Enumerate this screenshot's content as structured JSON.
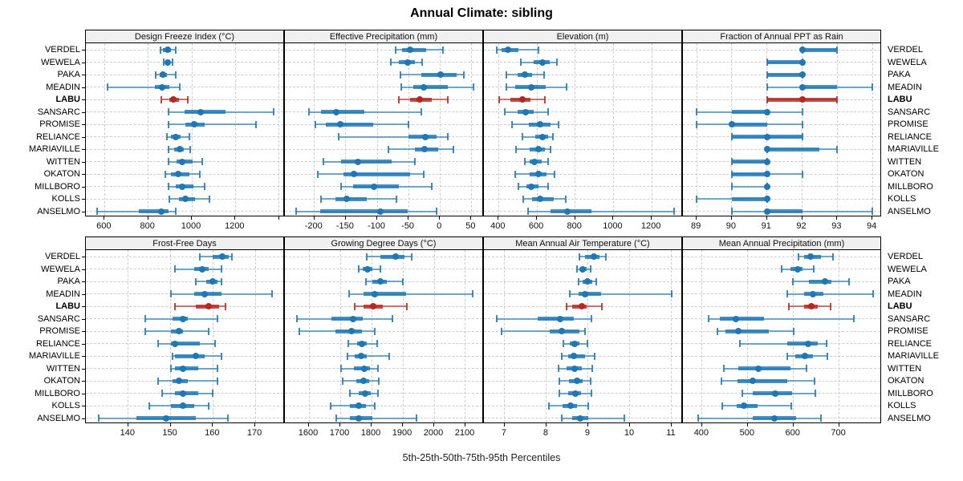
{
  "title": "Annual Climate: sibling",
  "footer": "5th-25th-50th-75th-95th Percentiles",
  "percentiles": [
    "5th",
    "25th",
    "50th",
    "75th",
    "95th"
  ],
  "stations": [
    "VERDEL",
    "WEWELA",
    "PAKA",
    "MEADIN",
    "LABU",
    "SANSARC",
    "PROMISE",
    "RELIANCE",
    "MARIAVILLE",
    "WITTEN",
    "OKATON",
    "MILLBORO",
    "KOLLS",
    "ANSELMO"
  ],
  "highlight_station": "LABU",
  "colors": {
    "series": "#1f77b4",
    "highlight": "#b42821",
    "panel_header_bg": "#f0f0f0",
    "border": "#000000",
    "grid": "#cdcdcd"
  },
  "chart_data": [
    {
      "type": "interval",
      "title": "Design Freeze Index (°C)",
      "row": 0,
      "col": 0,
      "xlim": [
        514,
        1427
      ],
      "ticks": [
        600,
        800,
        1000,
        1200
      ],
      "minor_ticks": [
        1400
      ],
      "series": {
        "VERDEL": [
          855,
          868,
          888,
          905,
          925
        ],
        "WEWELA": [
          870,
          880,
          890,
          900,
          912
        ],
        "PAKA": [
          835,
          851,
          868,
          886,
          925
        ],
        "MEADIN": [
          615,
          831,
          865,
          898,
          945
        ],
        "LABU": [
          861,
          897,
          915,
          940,
          982
        ],
        "SANSARC": [
          893,
          966,
          1039,
          1154,
          1377
        ],
        "PROMISE": [
          895,
          970,
          1011,
          1058,
          1294
        ],
        "RELIANCE": [
          886,
          906,
          927,
          948,
          990
        ],
        "MARIAVILLE": [
          895,
          919,
          944,
          962,
          993
        ],
        "WITTEN": [
          892,
          929,
          957,
          1002,
          1046
        ],
        "OKATON": [
          880,
          905,
          939,
          990,
          1036
        ],
        "MILLBORO": [
          892,
          927,
          954,
          1006,
          1058
        ],
        "KOLLS": [
          896,
          941,
          972,
          1015,
          1080
        ],
        "ANSELMO": [
          567,
          757,
          861,
          892,
          927
        ]
      }
    },
    {
      "type": "interval",
      "title": "Effective Precipitation (mm)",
      "row": 0,
      "col": 1,
      "xlim": [
        -247,
        70
      ],
      "ticks": [
        -200,
        -150,
        -100,
        -50,
        0,
        50
      ],
      "minor_ticks": [],
      "series": {
        "VERDEL": [
          -70,
          -60,
          -48,
          -22,
          5
        ],
        "WEWELA": [
          -78,
          -65,
          -52,
          -40,
          -28
        ],
        "PAKA": [
          -63,
          -30,
          1,
          26,
          38
        ],
        "MEADIN": [
          -62,
          -42,
          -26,
          12,
          53
        ],
        "LABU": [
          -66,
          -48,
          -32,
          -13,
          12
        ],
        "SANSARC": [
          -209,
          -189,
          -165,
          -120,
          -30
        ],
        "PROMISE": [
          -198,
          -182,
          -159,
          -106,
          -50
        ],
        "RELIANCE": [
          -161,
          -50,
          -23,
          -6,
          12
        ],
        "MARIAVILLE": [
          -82,
          -40,
          -25,
          -3,
          22
        ],
        "WITTEN": [
          -186,
          -157,
          -131,
          -77,
          -40
        ],
        "OKATON": [
          -194,
          -154,
          -137,
          -47,
          -26
        ],
        "MILLBORO": [
          -157,
          -138,
          -105,
          -66,
          -13
        ],
        "KOLLS": [
          -189,
          -167,
          -149,
          -116,
          -69
        ],
        "ANSELMO": [
          -229,
          -191,
          -95,
          -52,
          -6
        ]
      }
    },
    {
      "type": "interval",
      "title": "Elevation (m)",
      "row": 0,
      "col": 2,
      "xlim": [
        323,
        1363
      ],
      "ticks": [
        400,
        600,
        800,
        1000,
        1200
      ],
      "minor_ticks": [],
      "series": {
        "VERDEL": [
          390,
          414,
          449,
          505,
          610
        ],
        "WEWELA": [
          516,
          582,
          628,
          666,
          704
        ],
        "PAKA": [
          442,
          498,
          537,
          575,
          638
        ],
        "MEADIN": [
          439,
          488,
          572,
          645,
          753
        ],
        "LABU": [
          403,
          463,
          526,
          568,
          641
        ],
        "SANSARC": [
          432,
          498,
          540,
          582,
          659
        ],
        "PROMISE": [
          470,
          558,
          617,
          670,
          713
        ],
        "RELIANCE": [
          526,
          592,
          631,
          659,
          685
        ],
        "MARIAVILLE": [
          491,
          564,
          607,
          642,
          673
        ],
        "WITTEN": [
          536,
          561,
          589,
          624,
          657
        ],
        "OKATON": [
          487,
          564,
          610,
          652,
          690
        ],
        "MILLBORO": [
          505,
          544,
          572,
          610,
          659
        ],
        "KOLLS": [
          530,
          575,
          617,
          687,
          750
        ],
        "ANSELMO": [
          554,
          673,
          760,
          884,
          1318
        ]
      }
    },
    {
      "type": "interval",
      "title": "Fraction of Annual PPT as Rain",
      "row": 0,
      "col": 3,
      "xlim": [
        88.61,
        94.27
      ],
      "ticks": [
        89,
        90,
        91,
        92,
        93,
        94
      ],
      "minor_ticks": [],
      "series": {
        "VERDEL": [
          92,
          92,
          92,
          93,
          93
        ],
        "WEWELA": [
          91,
          91,
          92,
          92,
          92
        ],
        "PAKA": [
          91,
          91,
          92,
          92,
          92
        ],
        "MEADIN": [
          91,
          92,
          92,
          93,
          94
        ],
        "LABU": [
          91,
          91,
          92,
          93,
          93
        ],
        "SANSARC": [
          89,
          90,
          91,
          91,
          92
        ],
        "PROMISE": [
          89,
          90,
          90,
          91,
          92
        ],
        "RELIANCE": [
          90,
          90,
          91,
          92,
          92
        ],
        "MARIAVILLE": [
          91,
          91,
          91,
          92.5,
          93
        ],
        "WITTEN": [
          90,
          90,
          91,
          91,
          91
        ],
        "OKATON": [
          90,
          90,
          91,
          91,
          92
        ],
        "MILLBORO": [
          90,
          91,
          91,
          91,
          91
        ],
        "KOLLS": [
          89,
          90,
          91,
          91,
          91
        ],
        "ANSELMO": [
          90,
          91,
          91,
          92,
          94
        ]
      }
    },
    {
      "type": "interval",
      "title": "Frost-Free Days",
      "row": 1,
      "col": 0,
      "xlim": [
        130,
        177
      ],
      "ticks": [
        140,
        150,
        160,
        170
      ],
      "minor_ticks": [],
      "series": {
        "VERDEL": [
          157,
          160,
          162.3,
          163.7,
          164.5
        ],
        "WEWELA": [
          151,
          155.5,
          157.5,
          159,
          162
        ],
        "PAKA": [
          156,
          158.5,
          160,
          161,
          162
        ],
        "MEADIN": [
          150,
          155.5,
          158,
          162,
          174
        ],
        "LABU": [
          151,
          156,
          159,
          161.5,
          163
        ],
        "SANSARC": [
          144,
          150.5,
          153,
          154,
          161
        ],
        "PROMISE": [
          144,
          150,
          152,
          153,
          159
        ],
        "RELIANCE": [
          147,
          150,
          151,
          157,
          160.5
        ],
        "MARIAVILLE": [
          150.4,
          151,
          156,
          158,
          162
        ],
        "WITTEN": [
          150,
          151,
          153,
          156.5,
          161
        ],
        "OKATON": [
          147,
          150.4,
          152,
          154,
          161
        ],
        "MILLBORO": [
          148,
          151,
          153,
          156.5,
          160
        ],
        "KOLLS": [
          145,
          150,
          153,
          155.5,
          159
        ],
        "ANSELMO": [
          133,
          142,
          149,
          156,
          163.5
        ]
      }
    },
    {
      "type": "interval",
      "title": "Growing Degree Days (°C)",
      "row": 1,
      "col": 1,
      "xlim": [
        1523,
        2159
      ],
      "ticks": [
        1600,
        1700,
        1800,
        1900,
        2000,
        2100
      ],
      "minor_ticks": [],
      "series": {
        "VERDEL": [
          1785,
          1828,
          1878,
          1905,
          1929
        ],
        "WEWELA": [
          1760,
          1773,
          1788,
          1803,
          1828
        ],
        "PAKA": [
          1781,
          1803,
          1827,
          1848,
          1900
        ],
        "MEADIN": [
          1728,
          1774,
          1809,
          1910,
          2124
        ],
        "LABU": [
          1747,
          1774,
          1804,
          1837,
          1912
        ],
        "SANSARC": [
          1562,
          1672,
          1742,
          1772,
          1866
        ],
        "PROMISE": [
          1570,
          1685,
          1737,
          1768,
          1809
        ],
        "RELIANCE": [
          1726,
          1753,
          1768,
          1785,
          1818
        ],
        "MARIAVILLE": [
          1724,
          1747,
          1766,
          1785,
          1856
        ],
        "WITTEN": [
          1702,
          1744,
          1777,
          1796,
          1821
        ],
        "OKATON": [
          1707,
          1751,
          1775,
          1792,
          1824
        ],
        "MILLBORO": [
          1732,
          1758,
          1779,
          1798,
          1821
        ],
        "KOLLS": [
          1668,
          1730,
          1758,
          1781,
          1809
        ],
        "ANSELMO": [
          1687,
          1732,
          1760,
          1803,
          1944
        ]
      }
    },
    {
      "type": "interval",
      "title": "Mean Annual Air Temperature (°C)",
      "row": 1,
      "col": 2,
      "xlim": [
        6.5,
        11.27
      ],
      "ticks": [
        7,
        8,
        9,
        10,
        11
      ],
      "minor_ticks": [],
      "series": {
        "VERDEL": [
          8.79,
          8.92,
          9.14,
          9.27,
          9.42
        ],
        "WEWELA": [
          8.73,
          8.8,
          8.87,
          8.96,
          9.06
        ],
        "PAKA": [
          8.76,
          8.86,
          8.99,
          9.1,
          9.19
        ],
        "MEADIN": [
          8.55,
          8.76,
          8.92,
          9.31,
          11.0
        ],
        "LABU": [
          8.49,
          8.62,
          8.84,
          8.97,
          9.32
        ],
        "SANSARC": [
          6.81,
          7.78,
          8.33,
          8.65,
          9.08
        ],
        "PROMISE": [
          6.93,
          8.07,
          8.37,
          8.79,
          8.92
        ],
        "RELIANCE": [
          8.41,
          8.55,
          8.68,
          8.79,
          8.99
        ],
        "MARIAVILLE": [
          8.36,
          8.52,
          8.66,
          8.92,
          9.16
        ],
        "WITTEN": [
          8.28,
          8.49,
          8.67,
          8.84,
          9.1
        ],
        "OKATON": [
          8.3,
          8.54,
          8.73,
          8.86,
          9.06
        ],
        "MILLBORO": [
          8.3,
          8.52,
          8.7,
          8.82,
          9.08
        ],
        "KOLLS": [
          8.06,
          8.39,
          8.58,
          8.74,
          9.0
        ],
        "ANSELMO": [
          8.37,
          8.62,
          8.81,
          9.0,
          9.87
        ]
      }
    },
    {
      "type": "interval",
      "title": "Mean Annual Precipitation (mm)",
      "row": 1,
      "col": 3,
      "xlim": [
        358,
        794
      ],
      "ticks": [
        400,
        500,
        600,
        700
      ],
      "minor_ticks": [],
      "series": {
        "VERDEL": [
          611,
          623,
          637,
          660,
          687
        ],
        "WEWELA": [
          575,
          594,
          610,
          620,
          645
        ],
        "PAKA": [
          599,
          634,
          670,
          684,
          722
        ],
        "MEADIN": [
          587,
          623,
          643,
          666,
          774
        ],
        "LABU": [
          590,
          623,
          639,
          654,
          682
        ],
        "SANSARC": [
          415,
          439,
          474,
          536,
          733
        ],
        "PROMISE": [
          433,
          451,
          480,
          546,
          600
        ],
        "RELIANCE": [
          482,
          587,
          632,
          654,
          672
        ],
        "MARIAVILLE": [
          587,
          605,
          625,
          642,
          674
        ],
        "WITTEN": [
          447,
          480,
          523,
          593,
          628
        ],
        "OKATON": [
          443,
          478,
          511,
          586,
          646
        ],
        "MILLBORO": [
          488,
          511,
          560,
          597,
          648
        ],
        "KOLLS": [
          445,
          476,
          492,
          521,
          596
        ],
        "ANSELMO": [
          391,
          511,
          558,
          606,
          660
        ]
      }
    }
  ]
}
